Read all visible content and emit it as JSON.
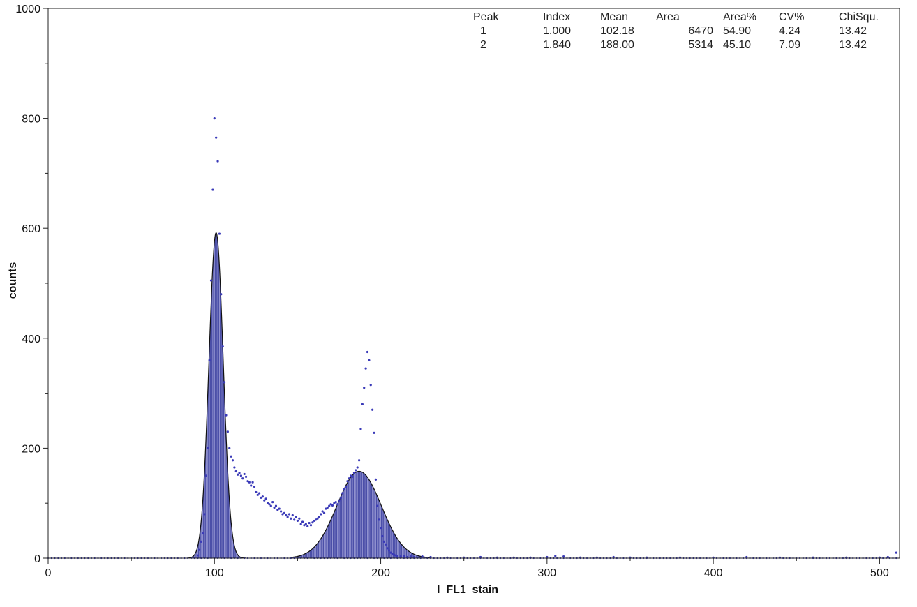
{
  "chart_data": {
    "type": "histogram",
    "title": "",
    "xlabel": "I  FL1  stain",
    "ylabel": "counts",
    "xlim": [
      0,
      512
    ],
    "ylim": [
      0,
      1000
    ],
    "x_ticks": [
      0,
      100,
      200,
      300,
      400,
      500
    ],
    "y_ticks": [
      0,
      200,
      400,
      600,
      800,
      1000
    ],
    "grid": false,
    "colors": {
      "fill": "#4b4fa8",
      "bar_line": "#9a9ad4",
      "fit_line": "#111111",
      "points": "#3a3ab8",
      "axis": "#222222"
    },
    "peaks_table": {
      "headers": [
        "Peak",
        "Index",
        "Mean",
        "Area",
        "Area%",
        "CV%",
        "ChiSqu."
      ],
      "rows": [
        [
          "1",
          "1.000",
          "102.18",
          "6470",
          "54.90",
          "4.24",
          "13.42"
        ],
        [
          "2",
          "1.840",
          "188.00",
          "5314",
          "45.10",
          "7.09",
          "13.42"
        ]
      ]
    },
    "fitted_peaks": [
      {
        "peak": 1,
        "center": 101,
        "height": 592,
        "sigma": 4.3,
        "x_range": [
          84,
          119
        ]
      },
      {
        "peak": 2,
        "center": 187,
        "height": 158,
        "sigma": 13.3,
        "x_range": [
          146,
          230
        ]
      }
    ],
    "points": [
      [
        90,
        5
      ],
      [
        91,
        15
      ],
      [
        92,
        30
      ],
      [
        93,
        45
      ],
      [
        94,
        80
      ],
      [
        95,
        150
      ],
      [
        96,
        200
      ],
      [
        97,
        360
      ],
      [
        98,
        505
      ],
      [
        99,
        670
      ],
      [
        100,
        800
      ],
      [
        101,
        765
      ],
      [
        102,
        722
      ],
      [
        103,
        590
      ],
      [
        104,
        480
      ],
      [
        105,
        385
      ],
      [
        106,
        320
      ],
      [
        107,
        260
      ],
      [
        108,
        230
      ],
      [
        109,
        200
      ],
      [
        110,
        185
      ],
      [
        111,
        178
      ],
      [
        112,
        165
      ],
      [
        113,
        158
      ],
      [
        114,
        152
      ],
      [
        115,
        155
      ],
      [
        116,
        150
      ],
      [
        117,
        145
      ],
      [
        118,
        153
      ],
      [
        119,
        148
      ],
      [
        120,
        140
      ],
      [
        121,
        138
      ],
      [
        122,
        132
      ],
      [
        123,
        138
      ],
      [
        124,
        130
      ],
      [
        125,
        120
      ],
      [
        126,
        115
      ],
      [
        127,
        118
      ],
      [
        128,
        110
      ],
      [
        129,
        112
      ],
      [
        130,
        105
      ],
      [
        131,
        108
      ],
      [
        132,
        100
      ],
      [
        133,
        98
      ],
      [
        134,
        95
      ],
      [
        135,
        102
      ],
      [
        136,
        92
      ],
      [
        137,
        95
      ],
      [
        138,
        88
      ],
      [
        139,
        90
      ],
      [
        140,
        85
      ],
      [
        141,
        80
      ],
      [
        142,
        82
      ],
      [
        143,
        78
      ],
      [
        144,
        75
      ],
      [
        145,
        80
      ],
      [
        146,
        72
      ],
      [
        147,
        78
      ],
      [
        148,
        70
      ],
      [
        149,
        75
      ],
      [
        150,
        68
      ],
      [
        151,
        72
      ],
      [
        152,
        62
      ],
      [
        153,
        66
      ],
      [
        154,
        60
      ],
      [
        155,
        62
      ],
      [
        156,
        58
      ],
      [
        157,
        64
      ],
      [
        158,
        60
      ],
      [
        159,
        65
      ],
      [
        160,
        68
      ],
      [
        161,
        70
      ],
      [
        162,
        72
      ],
      [
        163,
        75
      ],
      [
        164,
        80
      ],
      [
        165,
        85
      ],
      [
        166,
        82
      ],
      [
        167,
        90
      ],
      [
        168,
        92
      ],
      [
        169,
        95
      ],
      [
        170,
        98
      ],
      [
        171,
        96
      ],
      [
        172,
        100
      ],
      [
        173,
        102
      ],
      [
        174,
        98
      ],
      [
        175,
        105
      ],
      [
        176,
        110
      ],
      [
        177,
        118
      ],
      [
        178,
        125
      ],
      [
        179,
        130
      ],
      [
        180,
        140
      ],
      [
        181,
        145
      ],
      [
        182,
        150
      ],
      [
        183,
        148
      ],
      [
        184,
        155
      ],
      [
        185,
        160
      ],
      [
        186,
        165
      ],
      [
        187,
        178
      ],
      [
        188,
        235
      ],
      [
        189,
        280
      ],
      [
        190,
        310
      ],
      [
        191,
        345
      ],
      [
        192,
        375
      ],
      [
        193,
        360
      ],
      [
        194,
        315
      ],
      [
        195,
        270
      ],
      [
        196,
        228
      ],
      [
        197,
        143
      ],
      [
        198,
        95
      ],
      [
        199,
        70
      ],
      [
        200,
        55
      ],
      [
        201,
        40
      ],
      [
        202,
        30
      ],
      [
        203,
        25
      ],
      [
        204,
        18
      ],
      [
        205,
        14
      ],
      [
        206,
        10
      ],
      [
        207,
        8
      ],
      [
        208,
        6
      ],
      [
        209,
        5
      ],
      [
        210,
        4
      ],
      [
        212,
        3
      ],
      [
        214,
        4
      ],
      [
        216,
        2
      ],
      [
        218,
        3
      ],
      [
        220,
        2
      ],
      [
        225,
        3
      ],
      [
        230,
        2
      ],
      [
        240,
        1
      ],
      [
        250,
        1
      ],
      [
        260,
        2
      ],
      [
        270,
        1
      ],
      [
        280,
        1
      ],
      [
        290,
        1
      ],
      [
        300,
        2
      ],
      [
        305,
        4
      ],
      [
        310,
        3
      ],
      [
        320,
        1
      ],
      [
        330,
        1
      ],
      [
        340,
        2
      ],
      [
        350,
        1
      ],
      [
        360,
        1
      ],
      [
        380,
        1
      ],
      [
        400,
        1
      ],
      [
        420,
        2
      ],
      [
        440,
        1
      ],
      [
        460,
        1
      ],
      [
        480,
        1
      ],
      [
        500,
        1
      ],
      [
        505,
        2
      ],
      [
        510,
        10
      ]
    ]
  }
}
